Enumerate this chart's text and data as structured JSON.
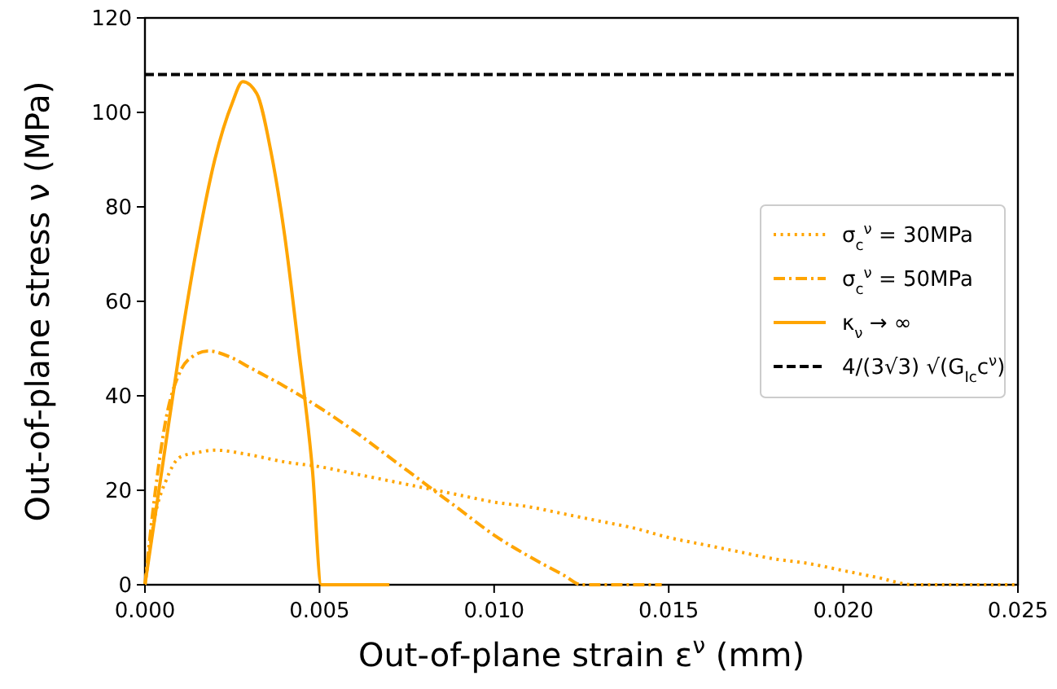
{
  "chart_data": {
    "type": "line",
    "xlabel": "Out-of-plane strain ε$^{ν}$ (mm)",
    "ylabel": "Out-of-plane stress ν (MPa)",
    "xlim": [
      0,
      0.025
    ],
    "ylim": [
      0,
      120
    ],
    "xticks": [
      {
        "value": 0,
        "label": "0.000"
      },
      {
        "value": 0.005,
        "label": "0.005"
      },
      {
        "value": 0.01,
        "label": "0.010"
      },
      {
        "value": 0.015,
        "label": "0.015"
      },
      {
        "value": 0.02,
        "label": "0.020"
      },
      {
        "value": 0.025,
        "label": "0.025"
      }
    ],
    "yticks": [
      0,
      20,
      40,
      60,
      80,
      100,
      120
    ],
    "legend": "right",
    "grid": false,
    "marker": "none",
    "series": [
      {
        "name": "σ$_{c}$$^{ν}$ = 30MPa",
        "color": "#ffa500",
        "line_style": "dotted",
        "x": [
          0,
          0.0003,
          0.0006,
          0.001,
          0.0015,
          0.002,
          0.003,
          0.004,
          0.005,
          0.006,
          0.007,
          0.008,
          0.009,
          0.01,
          0.011,
          0.012,
          0.013,
          0.014,
          0.015,
          0.016,
          0.017,
          0.018,
          0.019,
          0.02,
          0.021,
          0.022,
          0.025
        ],
        "values": [
          0,
          15,
          22,
          27,
          28,
          28.5,
          27.5,
          26,
          25,
          23.5,
          22,
          20.5,
          19,
          17.5,
          16.5,
          15,
          13.5,
          12,
          10,
          8.5,
          7,
          5.5,
          4.5,
          3,
          1.5,
          0,
          0
        ]
      },
      {
        "name": "σ$_{c}$$^{ν}$ = 50MPa",
        "color": "#ffa500",
        "line_style": "dashdot",
        "x": [
          0,
          0.0003,
          0.0006,
          0.001,
          0.0014,
          0.0018,
          0.0025,
          0.003,
          0.004,
          0.005,
          0.006,
          0.007,
          0.008,
          0.009,
          0.01,
          0.011,
          0.012,
          0.0125,
          0.0148
        ],
        "values": [
          0,
          20,
          35,
          45,
          48.5,
          49.5,
          48,
          46,
          42,
          37.5,
          32.5,
          27,
          21.5,
          16,
          10.5,
          6,
          2,
          0,
          0
        ]
      },
      {
        "name": "κ$_{ν}$ → ∞",
        "color": "#ffa500",
        "line_style": "solid",
        "x": [
          0,
          0.0005,
          0.001,
          0.0015,
          0.002,
          0.0025,
          0.0028,
          0.0032,
          0.0036,
          0.004,
          0.0044,
          0.0048,
          0.00505,
          0.007
        ],
        "values": [
          0,
          25,
          50,
          72,
          90,
          102,
          106.5,
          104,
          92,
          74,
          50,
          24,
          0,
          0
        ]
      },
      {
        "name": "4/(3√3) √(G$_{Ic}$c$^{ν}$)",
        "color": "#000000",
        "line_style": "dashed",
        "x": [
          0,
          0.025
        ],
        "values": [
          108,
          108
        ]
      }
    ]
  }
}
